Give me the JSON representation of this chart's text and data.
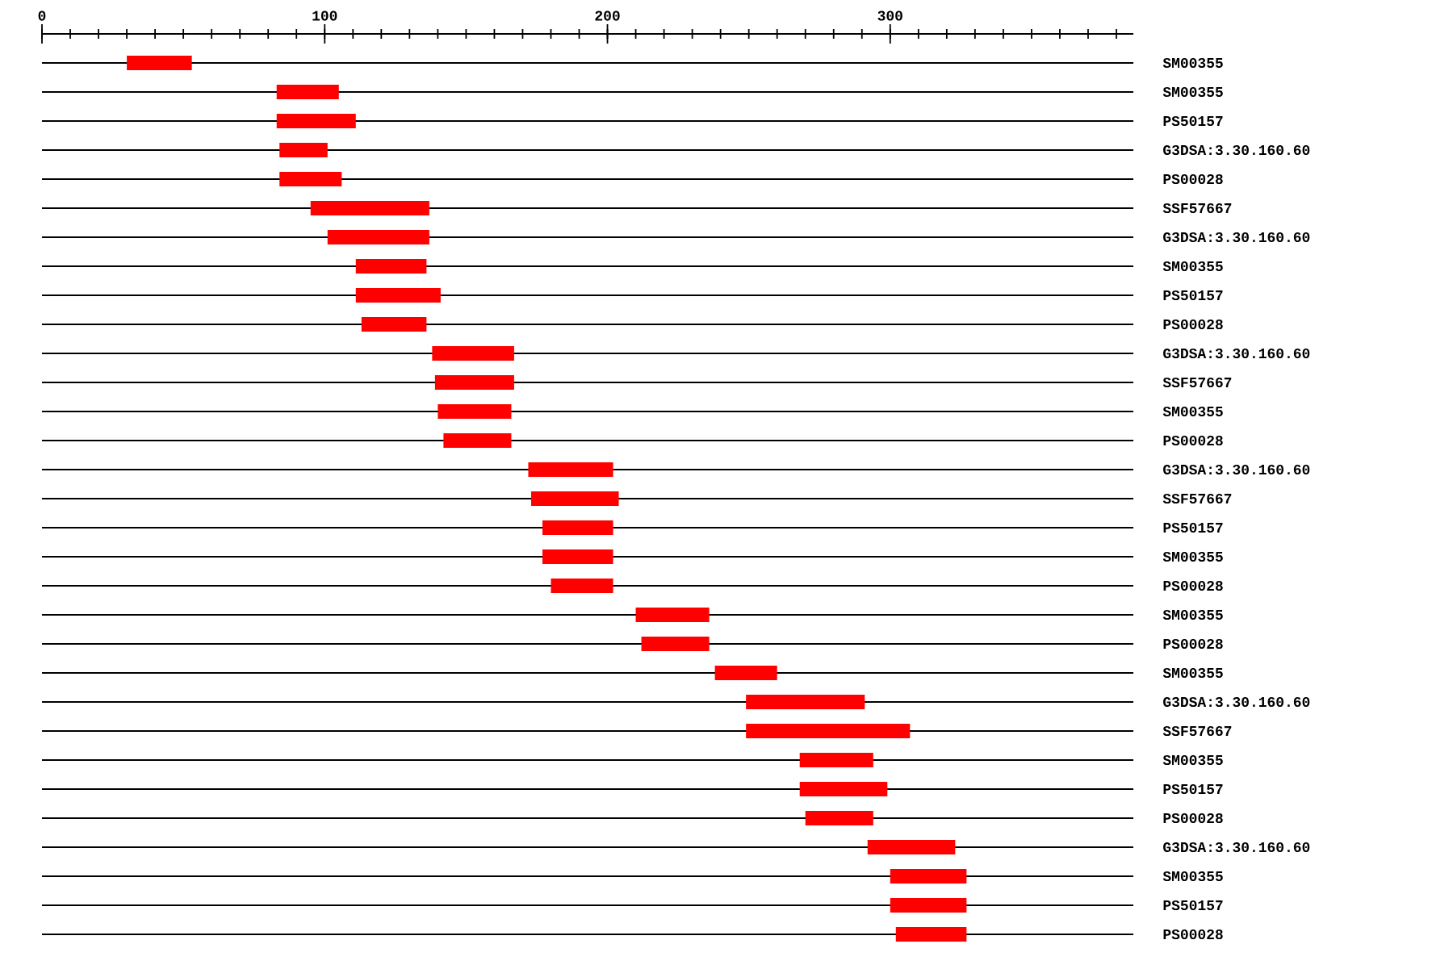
{
  "chart_data": {
    "type": "bar",
    "orientation": "horizontal",
    "color": "#ff0000",
    "grid": "y",
    "categories": [
      "SM00355",
      "SM00355",
      "PS50157",
      "G3DSA:3.30.160.60",
      "PS00028",
      "SSF57667",
      "G3DSA:3.30.160.60",
      "SM00355",
      "PS50157",
      "PS00028",
      "G3DSA:3.30.160.60",
      "SSF57667",
      "SM00355",
      "PS00028",
      "G3DSA:3.30.160.60",
      "SSF57667",
      "PS50157",
      "SM00355",
      "PS00028",
      "SM00355",
      "PS00028",
      "SM00355",
      "G3DSA:3.30.160.60",
      "SSF57667",
      "SM00355",
      "PS50157",
      "PS00028",
      "G3DSA:3.30.160.60",
      "SM00355",
      "PS50157",
      "PS00028"
    ],
    "base": [
      30,
      83,
      83,
      84,
      84,
      95,
      101,
      111,
      111,
      113,
      138,
      139,
      140,
      142,
      172,
      173,
      177,
      177,
      180,
      210,
      212,
      238,
      249,
      249,
      268,
      268,
      270,
      292,
      300,
      300,
      302
    ],
    "values": [
      23,
      22,
      28,
      17,
      22,
      42,
      36,
      25,
      30,
      23,
      29,
      28,
      26,
      24,
      30,
      31,
      25,
      25,
      22,
      26,
      24,
      22,
      42,
      58,
      26,
      31,
      24,
      31,
      27,
      27,
      25
    ],
    "xlim": [
      0,
      386
    ],
    "xticks": [
      0,
      {
        "value": 10,
        "label": null
      },
      {
        "value": 20,
        "label": null
      },
      {
        "value": 30,
        "label": null
      },
      {
        "value": 40,
        "label": null
      },
      {
        "value": 50,
        "label": null
      },
      {
        "value": 60,
        "label": null
      },
      {
        "value": 70,
        "label": null
      },
      {
        "value": 80,
        "label": null
      },
      {
        "value": 90,
        "label": null
      },
      100,
      {
        "value": 110,
        "label": null
      },
      {
        "value": 120,
        "label": null
      },
      {
        "value": 130,
        "label": null
      },
      {
        "value": 140,
        "label": null
      },
      {
        "value": 150,
        "label": null
      },
      {
        "value": 160,
        "label": null
      },
      {
        "value": 170,
        "label": null
      },
      {
        "value": 180,
        "label": null
      },
      {
        "value": 190,
        "label": null
      },
      200,
      {
        "value": 210,
        "label": null
      },
      {
        "value": 220,
        "label": null
      },
      {
        "value": 230,
        "label": null
      },
      {
        "value": 240,
        "label": null
      },
      {
        "value": 250,
        "label": null
      },
      {
        "value": 260,
        "label": null
      },
      {
        "value": 270,
        "label": null
      },
      {
        "value": 280,
        "label": null
      },
      {
        "value": 290,
        "label": null
      },
      300,
      {
        "value": 310,
        "label": null
      },
      {
        "value": 320,
        "label": null
      },
      {
        "value": 330,
        "label": null
      },
      {
        "value": 340,
        "label": null
      },
      {
        "value": 350,
        "label": null
      },
      {
        "value": 360,
        "label": null
      },
      {
        "value": 370,
        "label": null
      },
      {
        "value": 380,
        "label": null
      }
    ]
  }
}
